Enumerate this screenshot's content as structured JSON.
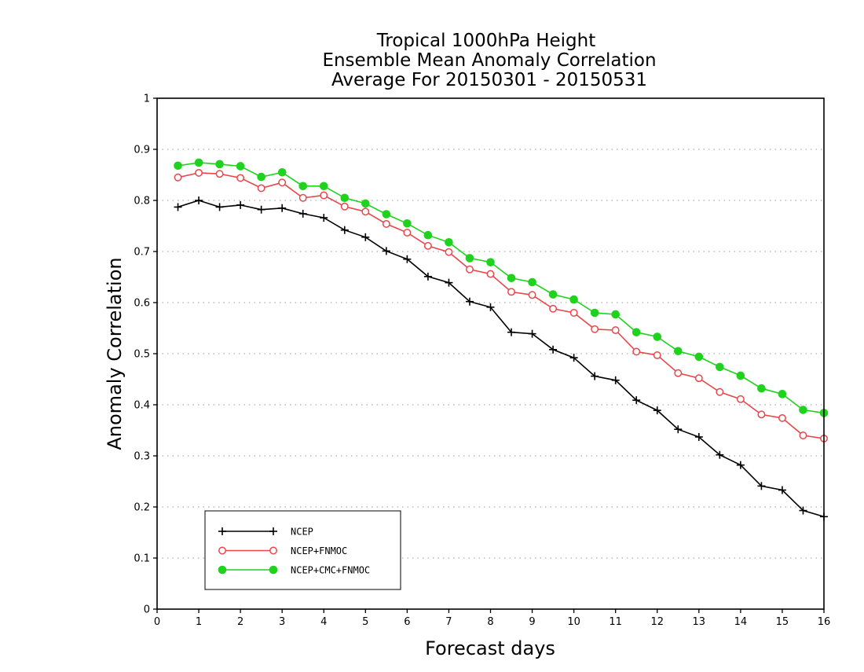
{
  "chart_data": {
    "type": "line",
    "title": [
      "Tropical 1000hPa Height",
      "Ensemble Mean Anomaly Correlation",
      "Average For 20150301 - 20150531"
    ],
    "xlabel": "Forecast days",
    "ylabel": "Anomaly Correlation",
    "xlim": [
      0,
      16
    ],
    "ylim": [
      0,
      1
    ],
    "xticks": [
      "0",
      "1",
      "2",
      "3",
      "4",
      "5",
      "6",
      "7",
      "8",
      "9",
      "10",
      "11",
      "12",
      "13",
      "14",
      "15",
      "16"
    ],
    "yticks": [
      "0",
      "0.1",
      "0.2",
      "0.3",
      "0.4",
      "0.5",
      "0.6",
      "0.7",
      "0.8",
      "0.9",
      "1"
    ],
    "grid": "horizontal dotted",
    "legend_position": "bottom-left",
    "x": [
      0.5,
      1,
      1.5,
      2,
      2.5,
      3,
      3.5,
      4,
      4.5,
      5,
      5.5,
      6,
      6.5,
      7,
      7.5,
      8,
      8.5,
      9,
      9.5,
      10,
      10.5,
      11,
      11.5,
      12,
      12.5,
      13,
      13.5,
      14,
      14.5,
      15,
      15.5,
      16
    ],
    "series": [
      {
        "name": "NCEP",
        "color": "#000000",
        "marker": "plus",
        "values": [
          0.787,
          0.8,
          0.787,
          0.791,
          0.782,
          0.785,
          0.774,
          0.766,
          0.742,
          0.728,
          0.701,
          0.685,
          0.651,
          0.639,
          0.602,
          0.591,
          0.542,
          0.539,
          0.508,
          0.492,
          0.456,
          0.448,
          0.409,
          0.389,
          0.352,
          0.337,
          0.302,
          0.282,
          0.241,
          0.233,
          0.193,
          0.181
        ]
      },
      {
        "name": "NCEP+FNMOC",
        "color": "#e8474b",
        "marker": "open-circle",
        "values": [
          0.845,
          0.854,
          0.852,
          0.844,
          0.824,
          0.835,
          0.805,
          0.81,
          0.788,
          0.778,
          0.754,
          0.737,
          0.711,
          0.699,
          0.665,
          0.656,
          0.621,
          0.615,
          0.588,
          0.58,
          0.548,
          0.546,
          0.504,
          0.497,
          0.462,
          0.452,
          0.425,
          0.411,
          0.381,
          0.374,
          0.34,
          0.334
        ]
      },
      {
        "name": "NCEP+CMC+FNMOC",
        "color": "#1ed21e",
        "marker": "filled-circle",
        "values": [
          0.868,
          0.874,
          0.871,
          0.867,
          0.846,
          0.855,
          0.828,
          0.828,
          0.805,
          0.794,
          0.773,
          0.755,
          0.732,
          0.718,
          0.687,
          0.679,
          0.648,
          0.64,
          0.616,
          0.606,
          0.58,
          0.577,
          0.542,
          0.533,
          0.505,
          0.494,
          0.474,
          0.457,
          0.432,
          0.421,
          0.39,
          0.384
        ]
      }
    ]
  }
}
